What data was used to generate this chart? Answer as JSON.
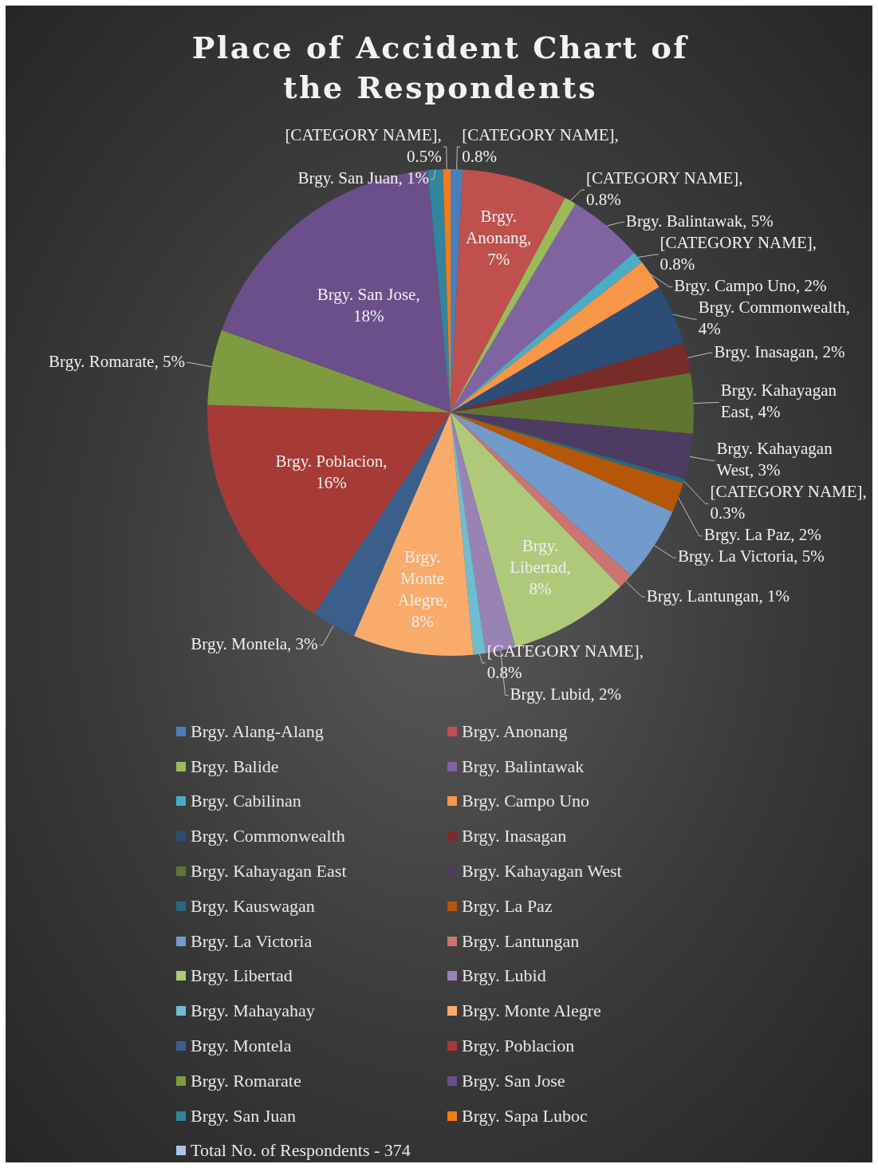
{
  "chart_data": {
    "type": "pie",
    "title": "Place of Accident Chart of the Respondents",
    "categories": [
      "Brgy. Alang-Alang",
      "Brgy. Anonang",
      "Brgy. Balide",
      "Brgy. Balintawak",
      "Brgy. Cabilinan",
      "Brgy. Campo Uno",
      "Brgy. Commonwealth",
      "Brgy. Inasagan",
      "Brgy. Kahayagan East",
      "Brgy. Kahayagan West",
      "Brgy. Kauswagan",
      "Brgy. La Paz",
      "Brgy. La Victoria",
      "Brgy. Lantungan",
      "Brgy. Libertad",
      "Brgy. Lubid",
      "Brgy. Mahayahay",
      "Brgy. Monte Alegre",
      "Brgy. Montela",
      "Brgy. Poblacion",
      "Brgy. Romarate",
      "Brgy. San Jose",
      "Brgy. San Juan",
      "Brgy. Sapa Luboc",
      "Total No. of Respondents - 374"
    ],
    "values": [
      0.8,
      7,
      0.8,
      5,
      0.8,
      2,
      4,
      2,
      4,
      3,
      0.3,
      2,
      5,
      1,
      8,
      2,
      0.8,
      8,
      3,
      16,
      5,
      18,
      1,
      0.5,
      0
    ],
    "colors": [
      "#4a7ebb",
      "#c0504d",
      "#9bbb59",
      "#8064a2",
      "#4bacc6",
      "#f79646",
      "#2c4d75",
      "#772c2a",
      "#5f7530",
      "#4d3b62",
      "#276a7c",
      "#b65708",
      "#729aca",
      "#cd7371",
      "#afc97a",
      "#9983b5",
      "#6fbdd1",
      "#f9ab6b",
      "#3a5f8b",
      "#a63a37",
      "#7f9b3f",
      "#6a4f8a",
      "#31859c",
      "#f57c14",
      "#a9c4e6"
    ],
    "value_labels": [
      "[CATEGORY NAME], 0.8%",
      "Brgy. Anonang, 7%",
      "[CATEGORY NAME], 0.8%",
      "Brgy. Balintawak, 5%",
      "[CATEGORY NAME], 0.8%",
      "Brgy. Campo Uno, 2%",
      "Brgy. Commonwealth, 4%",
      "Brgy. Inasagan, 2%",
      "Brgy. Kahayagan East, 4%",
      "Brgy. Kahayagan West, 3%",
      "[CATEGORY NAME], 0.3%",
      "Brgy. La Paz, 2%",
      "Brgy. La Victoria, 5%",
      "Brgy. Lantungan, 1%",
      "Brgy. Libertad, 8%",
      "Brgy. Lubid, 2%",
      "[CATEGORY NAME], 0.8%",
      "Brgy. Monte Alegre, 8%",
      "Brgy. Montela, 3%",
      "Brgy. Poblacion, 16%",
      "Brgy. Romarate, 5%",
      "Brgy. San Jose, 18%",
      "Brgy. San Juan, 1%",
      "[CATEGORY NAME], 0.5%",
      null
    ],
    "legend": "bottom"
  }
}
